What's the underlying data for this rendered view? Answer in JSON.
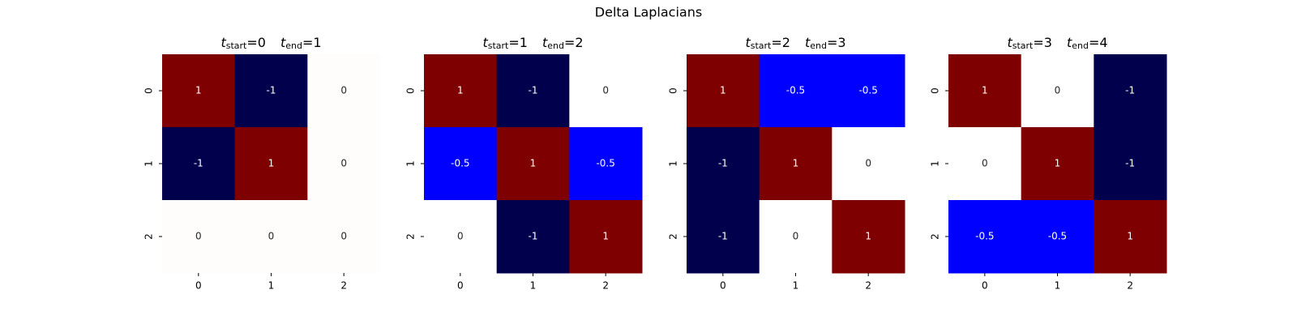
{
  "title": "Delta Laplacians",
  "chart_data": [
    {
      "type": "heatmap",
      "title": [
        [
          "t",
          "start",
          "=0"
        ],
        [
          "t",
          "end",
          "=1"
        ]
      ],
      "x": [
        "0",
        "1",
        "2"
      ],
      "y": [
        "0",
        "1",
        "2"
      ],
      "values": [
        [
          1,
          -1,
          0
        ],
        [
          -1,
          1,
          0
        ],
        [
          0,
          0,
          0
        ]
      ],
      "colormap": [
        {
          "value": -1,
          "color": "#00004c"
        },
        {
          "value": -0.5,
          "color": "#0000ff"
        },
        {
          "value": 0,
          "color": "#fffcfc"
        },
        {
          "value": 0.5,
          "color": "#ff0000"
        },
        {
          "value": 1,
          "color": "#7f0000"
        }
      ]
    },
    {
      "type": "heatmap",
      "title": [
        [
          "t",
          "start",
          "=1"
        ],
        [
          "t",
          "end",
          "=2"
        ]
      ],
      "x": [
        "0",
        "1",
        "2"
      ],
      "y": [
        "0",
        "1",
        "2"
      ],
      "values": [
        [
          1,
          -1,
          0
        ],
        [
          -0.5,
          1,
          -0.5
        ],
        [
          0,
          -1,
          1
        ]
      ],
      "colormap": [
        {
          "value": -1,
          "color": "#00004c"
        },
        {
          "value": -0.5,
          "color": "#0000ff"
        },
        {
          "value": 0,
          "color": "#ffffff"
        },
        {
          "value": 0.5,
          "color": "#ff0000"
        },
        {
          "value": 1,
          "color": "#7f0000"
        }
      ]
    },
    {
      "type": "heatmap",
      "title": [
        [
          "t",
          "start",
          "=2"
        ],
        [
          "t",
          "end",
          "=3"
        ]
      ],
      "x": [
        "0",
        "1",
        "2"
      ],
      "y": [
        "0",
        "1",
        "2"
      ],
      "values": [
        [
          1,
          -0.5,
          -0.5
        ],
        [
          -1,
          1,
          0
        ],
        [
          -1,
          0,
          1
        ]
      ],
      "colormap": [
        {
          "value": -1,
          "color": "#00004c"
        },
        {
          "value": -0.5,
          "color": "#0000ff"
        },
        {
          "value": 0,
          "color": "#ffffff"
        },
        {
          "value": 0.5,
          "color": "#ff0000"
        },
        {
          "value": 1,
          "color": "#7f0000"
        }
      ]
    },
    {
      "type": "heatmap",
      "title": [
        [
          "t",
          "start",
          "=3"
        ],
        [
          "t",
          "end",
          "=4"
        ]
      ],
      "x": [
        "0",
        "1",
        "2"
      ],
      "y": [
        "0",
        "1",
        "2"
      ],
      "values": [
        [
          1,
          0,
          -1
        ],
        [
          0,
          1,
          -1
        ],
        [
          -0.5,
          -0.5,
          1
        ]
      ],
      "colormap": [
        {
          "value": -1,
          "color": "#00004c"
        },
        {
          "value": -0.5,
          "color": "#0000ff"
        },
        {
          "value": 0,
          "color": "#ffffff"
        },
        {
          "value": 0.5,
          "color": "#ff0000"
        },
        {
          "value": 1,
          "color": "#7f0000"
        }
      ]
    }
  ]
}
